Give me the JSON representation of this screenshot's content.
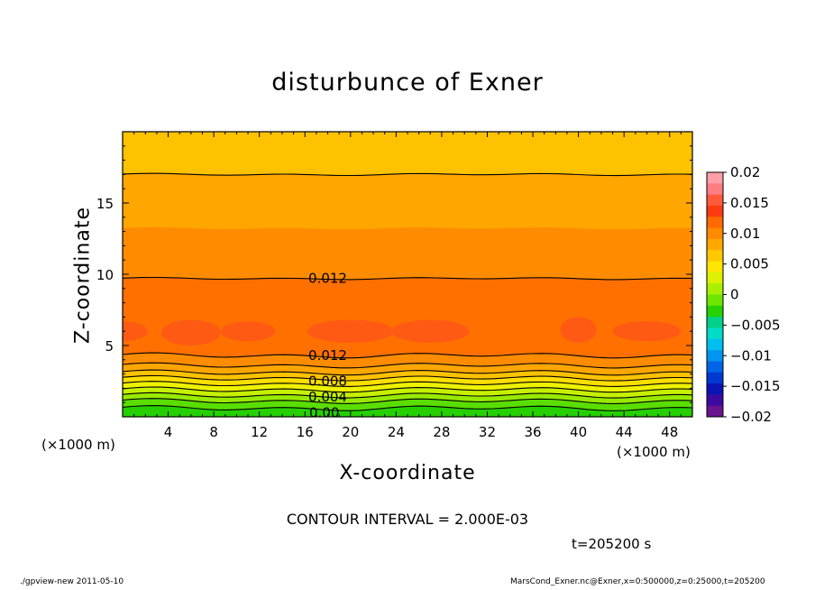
{
  "chart_data": {
    "type": "contour",
    "title": "disturbunce of Exner",
    "xlabel": "X-coordinate",
    "ylabel": "Z-coordinate",
    "x_unit_label": "(×1000 m)",
    "xlim": [
      0,
      50
    ],
    "ylim": [
      0,
      20
    ],
    "x_ticks": [
      4,
      8,
      12,
      16,
      20,
      24,
      28,
      32,
      36,
      40,
      44,
      48
    ],
    "y_ticks": [
      5,
      10,
      15
    ],
    "contour_interval_text": "CONTOUR INTERVAL = 2.000E-03",
    "time_text": "t=205200 s",
    "colorbar": {
      "levels": [
        0.02,
        0.015,
        0.01,
        0.005,
        0,
        -0.005,
        -0.01,
        -0.015,
        -0.02
      ],
      "labels": [
        "0.02",
        "0.015",
        "0.01",
        "0.005",
        "0",
        "−0.005",
        "−0.01",
        "−0.015",
        "−0.02"
      ],
      "colors_top_to_bottom": [
        "#ff9fa8",
        "#ff7e84",
        "#ff5a3c",
        "#ff3a10",
        "#ff6a00",
        "#ff8a00",
        "#ffa800",
        "#ffc800",
        "#ffe600",
        "#dcf000",
        "#a8f000",
        "#6ee600",
        "#26d200",
        "#00d08a",
        "#00dcc8",
        "#00bff0",
        "#0096f0",
        "#0064e6",
        "#0038d2",
        "#0a14b4",
        "#3c0aa0",
        "#6a1490"
      ]
    },
    "bands": [
      {
        "z_from": 17.0,
        "z_to": 20.0,
        "color": "#ffc200"
      },
      {
        "z_from": 13.2,
        "z_to": 17.0,
        "color": "#ffa600"
      },
      {
        "z_from": 9.7,
        "z_to": 13.2,
        "color": "#ff8c00"
      },
      {
        "z_from": 4.3,
        "z_to": 9.7,
        "color": "#ff7000"
      },
      {
        "z_from": 3.6,
        "z_to": 4.3,
        "color": "#ff8c00"
      },
      {
        "z_from": 3.1,
        "z_to": 3.6,
        "color": "#ffa600"
      },
      {
        "z_from": 2.7,
        "z_to": 3.1,
        "color": "#ffc200"
      },
      {
        "z_from": 2.3,
        "z_to": 2.7,
        "color": "#ffde00"
      },
      {
        "z_from": 1.9,
        "z_to": 2.3,
        "color": "#eef200"
      },
      {
        "z_from": 1.5,
        "z_to": 1.9,
        "color": "#c6f000"
      },
      {
        "z_from": 1.1,
        "z_to": 1.5,
        "color": "#98ea00"
      },
      {
        "z_from": 0.6,
        "z_to": 1.1,
        "color": "#5ade00"
      },
      {
        "z_from": 0.0,
        "z_to": 0.6,
        "color": "#26d000"
      }
    ],
    "highlight_color": "#ff5a14",
    "contour_lines_z": [
      17.0,
      9.7,
      4.3,
      3.6,
      3.1,
      2.7,
      2.3,
      1.9,
      1.5,
      1.1,
      0.6
    ],
    "contour_labels": [
      {
        "text": "0.012",
        "x": 18.0,
        "z": 9.7
      },
      {
        "text": "0.012",
        "x": 18.0,
        "z": 4.3
      },
      {
        "text": "0.008",
        "x": 18.0,
        "z": 2.5
      },
      {
        "text": "0.004",
        "x": 18.0,
        "z": 1.4
      },
      {
        "text": "0.00",
        "x": 17.7,
        "z": 0.3
      }
    ]
  },
  "footer": {
    "left": "./gpview-new  2011-05-10",
    "right": "MarsCond_Exner.nc@Exner,x=0:500000,z=0:25000,t=205200"
  }
}
